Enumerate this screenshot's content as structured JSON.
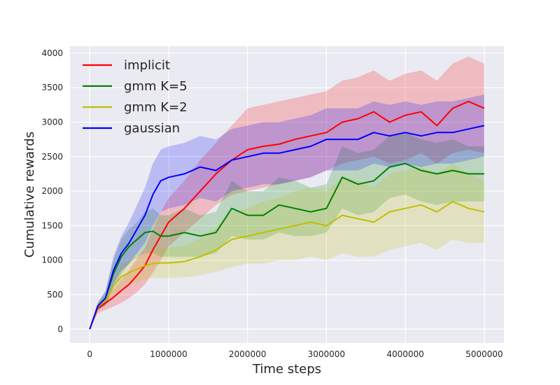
{
  "chart_data": {
    "type": "line",
    "title": "",
    "xlabel": "Time steps",
    "ylabel": "Cumulative rewards",
    "xlim": [
      -250000,
      5250000
    ],
    "ylim": [
      -200,
      4100
    ],
    "xticks": [
      0,
      1000000,
      2000000,
      3000000,
      4000000,
      5000000
    ],
    "xtick_labels": [
      "0",
      "1000000",
      "2000000",
      "3000000",
      "4000000",
      "5000000"
    ],
    "yticks": [
      0,
      500,
      1000,
      1500,
      2000,
      2500,
      3000,
      3500,
      4000
    ],
    "ytick_labels": [
      "0",
      "500",
      "1000",
      "1500",
      "2000",
      "2500",
      "3000",
      "3500",
      "4000"
    ],
    "grid": true,
    "legend_position": "top-left",
    "background": "#EAEAF2",
    "x": [
      0,
      100000,
      200000,
      300000,
      400000,
      500000,
      600000,
      700000,
      800000,
      900000,
      1000000,
      1200000,
      1400000,
      1600000,
      1800000,
      2000000,
      2200000,
      2400000,
      2600000,
      2800000,
      3000000,
      3200000,
      3400000,
      3600000,
      3800000,
      4000000,
      4200000,
      4400000,
      4600000,
      4800000,
      5000000
    ],
    "series": [
      {
        "name": "implicit",
        "color": "#FF0000",
        "values": [
          0,
          300,
          380,
          460,
          560,
          650,
          780,
          920,
          1150,
          1350,
          1550,
          1750,
          2000,
          2250,
          2450,
          2600,
          2650,
          2680,
          2750,
          2800,
          2850,
          3000,
          3050,
          3150,
          3000,
          3100,
          3150,
          2950,
          3200,
          3300,
          3200
        ],
        "lower": [
          0,
          230,
          280,
          330,
          380,
          450,
          540,
          650,
          820,
          1000,
          1200,
          1400,
          1600,
          1800,
          1950,
          2000,
          2050,
          2100,
          2150,
          2200,
          2300,
          2400,
          2450,
          2500,
          2400,
          2450,
          2550,
          2400,
          2550,
          2600,
          2550
        ],
        "upper": [
          0,
          360,
          460,
          580,
          720,
          860,
          1030,
          1180,
          1450,
          1700,
          1900,
          2150,
          2450,
          2700,
          2950,
          3200,
          3250,
          3300,
          3350,
          3400,
          3450,
          3600,
          3650,
          3750,
          3600,
          3700,
          3750,
          3600,
          3850,
          3950,
          3850
        ]
      },
      {
        "name": "gmm K=5",
        "color": "#008000",
        "values": [
          0,
          330,
          450,
          800,
          1050,
          1200,
          1300,
          1400,
          1420,
          1350,
          1350,
          1400,
          1350,
          1400,
          1750,
          1650,
          1650,
          1800,
          1750,
          1700,
          1750,
          2200,
          2100,
          2150,
          2350,
          2400,
          2300,
          2250,
          2300,
          2250,
          2250
        ],
        "lower": [
          0,
          280,
          350,
          600,
          800,
          950,
          1050,
          1100,
          1100,
          1050,
          1050,
          1050,
          1050,
          1100,
          1350,
          1300,
          1300,
          1400,
          1350,
          1350,
          1400,
          1750,
          1650,
          1700,
          1900,
          1950,
          1850,
          1800,
          1850,
          1850,
          1850
        ],
        "upper": [
          0,
          380,
          550,
          1000,
          1300,
          1450,
          1550,
          1700,
          1750,
          1650,
          1650,
          1750,
          1650,
          1700,
          2150,
          2000,
          2000,
          2200,
          2150,
          2050,
          2100,
          2650,
          2550,
          2600,
          2800,
          2850,
          2750,
          2700,
          2750,
          2650,
          2650
        ]
      },
      {
        "name": "gmm K=2",
        "color": "#BFBF00",
        "values": [
          0,
          320,
          420,
          620,
          760,
          820,
          870,
          920,
          950,
          960,
          960,
          980,
          1050,
          1150,
          1300,
          1350,
          1400,
          1450,
          1500,
          1550,
          1500,
          1650,
          1600,
          1550,
          1700,
          1750,
          1800,
          1700,
          1850,
          1750,
          1700
        ],
        "lower": [
          0,
          270,
          330,
          480,
          580,
          640,
          680,
          720,
          740,
          740,
          740,
          750,
          780,
          830,
          900,
          950,
          950,
          1000,
          1000,
          1050,
          1000,
          1100,
          1050,
          1050,
          1150,
          1200,
          1250,
          1150,
          1300,
          1250,
          1250
        ],
        "upper": [
          0,
          370,
          510,
          760,
          940,
          1000,
          1060,
          1120,
          1160,
          1180,
          1180,
          1210,
          1320,
          1470,
          1700,
          1750,
          1850,
          1900,
          2000,
          2050,
          2000,
          2200,
          2150,
          2050,
          2250,
          2300,
          2350,
          2250,
          2400,
          2250,
          2150
        ]
      },
      {
        "name": "gaussian",
        "color": "#0000FF",
        "values": [
          0,
          330,
          450,
          850,
          1100,
          1250,
          1450,
          1650,
          1950,
          2150,
          2200,
          2250,
          2350,
          2300,
          2450,
          2500,
          2550,
          2550,
          2600,
          2650,
          2750,
          2750,
          2750,
          2850,
          2800,
          2850,
          2800,
          2850,
          2850,
          2900,
          2950
        ],
        "lower": [
          0,
          280,
          350,
          650,
          850,
          950,
          1100,
          1250,
          1500,
          1700,
          1750,
          1800,
          1900,
          1850,
          2000,
          2050,
          2100,
          2100,
          2150,
          2200,
          2300,
          2300,
          2300,
          2400,
          2350,
          2400,
          2350,
          2400,
          2400,
          2450,
          2500
        ],
        "upper": [
          0,
          380,
          550,
          1050,
          1350,
          1550,
          1800,
          2050,
          2400,
          2600,
          2650,
          2700,
          2800,
          2750,
          2900,
          2950,
          3000,
          3000,
          3050,
          3100,
          3200,
          3200,
          3200,
          3300,
          3250,
          3300,
          3250,
          3300,
          3300,
          3350,
          3400
        ]
      }
    ]
  }
}
